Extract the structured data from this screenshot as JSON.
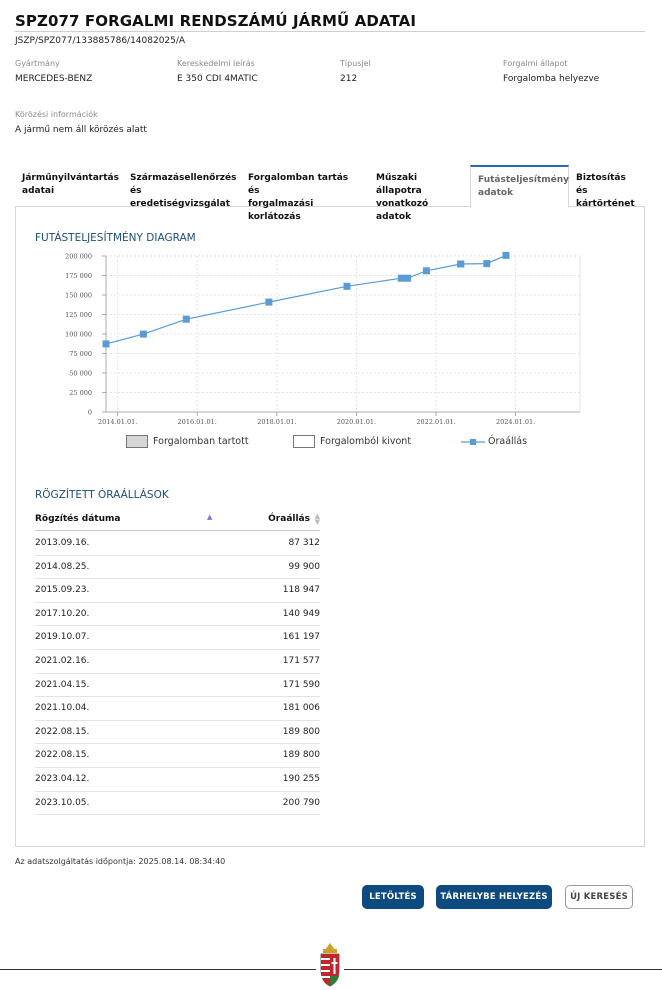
{
  "header": {
    "title": "SPZ077 FORGALMI RENDSZÁMÚ JÁRMŰ ADATAI",
    "doc_id": "JSZP/SPZ077/133885786/14082025/A"
  },
  "vehicle": {
    "fields": [
      {
        "label": "Gyártmány",
        "value": "MERCEDES-BENZ"
      },
      {
        "label": "Kereskedelmi leírás",
        "value": "E 350 CDI 4MATIC"
      },
      {
        "label": "Típusjel",
        "value": "212"
      },
      {
        "label": "Forgalmi állapot",
        "value": "Forgalomba helyezve"
      }
    ],
    "tracking": {
      "label": "Körözési információk",
      "value": "A jármű nem áll körözés alatt"
    }
  },
  "tabs": [
    {
      "line1": "Járműnyilvántartás",
      "line2": "adatai"
    },
    {
      "line1": "Származásellenőrzés",
      "line2": "és eredetiségvizsgálat"
    },
    {
      "line1": "Forgalomban tartás és",
      "line2": "forgalmazási korlátozás"
    },
    {
      "line1": "Műszaki állapotra",
      "line2": "vonatkozó adatok"
    },
    {
      "line1": "Futásteljesítmény",
      "line2": "adatok"
    },
    {
      "line1": "Biztosítás és",
      "line2": "kártörténet"
    }
  ],
  "chart_section_title": "FUTÁSTELJESÍTMÉNY DIAGRAM",
  "chart_data": {
    "type": "line",
    "title": "",
    "xlabel": "",
    "ylabel": "",
    "x_ticks": [
      "2014.01.01.",
      "2016.01.01.",
      "2018.01.01.",
      "2020.01.01.",
      "2022.01.01.",
      "2024.01.01."
    ],
    "y_ticks": [
      "0",
      "25 000",
      "50 000",
      "75 000",
      "100 000",
      "125 000",
      "150 000",
      "175 000",
      "200 000"
    ],
    "ylim": [
      0,
      200000
    ],
    "xlim": [
      "2013.09.16.",
      "2025.08.14."
    ],
    "grid": true,
    "legend": [
      "Forgalomban tartott",
      "Forgalomból kivont",
      "Óraállás"
    ],
    "legend_placement": "bottom",
    "series": [
      {
        "name": "Óraállás",
        "color": "#5b9bd5",
        "x": [
          "2013.09.16.",
          "2014.08.25.",
          "2015.09.23.",
          "2017.10.20.",
          "2019.10.07.",
          "2021.02.16.",
          "2021.04.15.",
          "2021.10.04.",
          "2022.08.15.",
          "2022.08.15.",
          "2023.04.12.",
          "2023.10.05."
        ],
        "values": [
          87312,
          99900,
          118947,
          140949,
          161197,
          171577,
          171590,
          181006,
          189800,
          189800,
          190255,
          200790
        ]
      }
    ]
  },
  "table_section_title": "RÖGZÍTETT ÓRAÁLLÁSOK",
  "table": {
    "headers": {
      "date": "Rögzítés dátuma",
      "km": "Óraállás"
    },
    "rows": [
      {
        "date": "2013.09.16.",
        "km": "87 312"
      },
      {
        "date": "2014.08.25.",
        "km": "99 900"
      },
      {
        "date": "2015.09.23.",
        "km": "118 947"
      },
      {
        "date": "2017.10.20.",
        "km": "140 949"
      },
      {
        "date": "2019.10.07.",
        "km": "161 197"
      },
      {
        "date": "2021.02.16.",
        "km": "171 577"
      },
      {
        "date": "2021.04.15.",
        "km": "171 590"
      },
      {
        "date": "2021.10.04.",
        "km": "181 006"
      },
      {
        "date": "2022.08.15.",
        "km": "189 800"
      },
      {
        "date": "2022.08.15.",
        "km": "189 800"
      },
      {
        "date": "2023.04.12.",
        "km": "190 255"
      },
      {
        "date": "2023.10.05.",
        "km": "200 790"
      }
    ]
  },
  "footer": {
    "timestamp": "Az adatszolgáltatás időpontja: 2025.08.14. 08:34:40"
  },
  "buttons": {
    "download": "LETÖLTÉS",
    "store": "TÁRHELYBE HELYEZÉS",
    "new_search": "ÚJ KERESÉS"
  },
  "colors": {
    "accent": "#0d4a80",
    "series": "#5b9bd5",
    "section_title": "#1f4e79"
  }
}
